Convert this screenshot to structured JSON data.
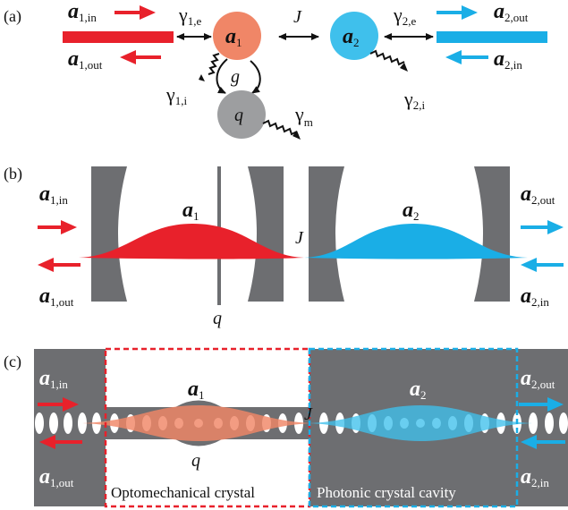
{
  "panels": {
    "a": {
      "tag": "(a)",
      "a1_in": {
        "sym": "a",
        "sub": "1,in"
      },
      "a1_out": {
        "sym": "a",
        "sub": "1,out"
      },
      "a2_out": {
        "sym": "a",
        "sub": "2,out"
      },
      "a2_in": {
        "sym": "a",
        "sub": "2,in"
      },
      "gamma_1e": {
        "sym": "γ",
        "sub": "1,e"
      },
      "gamma_2e": {
        "sym": "γ",
        "sub": "2,e"
      },
      "gamma_1i": {
        "sym": "γ",
        "sub": "1,i"
      },
      "gamma_2i": {
        "sym": "γ",
        "sub": "2,i"
      },
      "gamma_m": {
        "sym": "γ",
        "sub": "m"
      },
      "J": "J",
      "g": "g",
      "mode1": {
        "sym": "a",
        "sub": "1"
      },
      "mode2": {
        "sym": "a",
        "sub": "2"
      },
      "mech": "q"
    },
    "b": {
      "tag": "(b)",
      "a1_in": {
        "sym": "a",
        "sub": "1,in"
      },
      "a1_out": {
        "sym": "a",
        "sub": "1,out"
      },
      "a2_out": {
        "sym": "a",
        "sub": "2,out"
      },
      "a2_in": {
        "sym": "a",
        "sub": "2,in"
      },
      "mode1": {
        "sym": "a",
        "sub": "1"
      },
      "mode2": {
        "sym": "a",
        "sub": "2"
      },
      "J": "J",
      "q": "q"
    },
    "c": {
      "tag": "(c)",
      "a1_in": {
        "sym": "a",
        "sub": "1,in"
      },
      "a1_out": {
        "sym": "a",
        "sub": "1,out"
      },
      "a2_out": {
        "sym": "a",
        "sub": "2,out"
      },
      "a2_in": {
        "sym": "a",
        "sub": "2,in"
      },
      "mode1": {
        "sym": "a",
        "sub": "1"
      },
      "mode2": {
        "sym": "a",
        "sub": "2"
      },
      "J": "J",
      "q": "q",
      "left_box_label": "Optomechanical crystal",
      "right_box_label": "Photonic crystal cavity"
    }
  },
  "colors": {
    "red": "#e8212b",
    "blue": "#1aaee6",
    "gray": "#6d6e71",
    "salmon": "#f08667",
    "light_blue": "#3fc0ec",
    "mech_gray": "#9d9ea0"
  }
}
